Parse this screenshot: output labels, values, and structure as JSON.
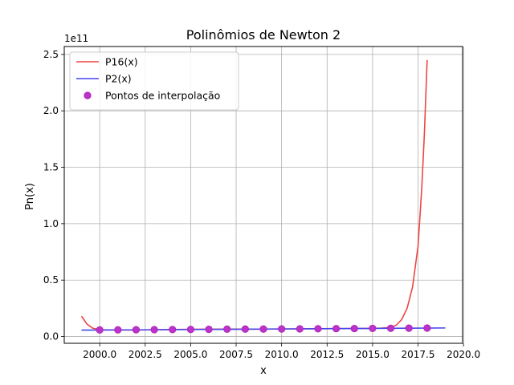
{
  "chart_data": {
    "type": "line",
    "title": "Polinômios de Newton 2",
    "xlabel": "x",
    "ylabel": "Pn(x)",
    "y_offset_label": "1e11",
    "xlim": [
      1998.05,
      2019.95
    ],
    "ylim": [
      -0.06,
      2.57
    ],
    "y_unit_scale": 100000000000.0,
    "x_ticks": [
      2000.0,
      2002.5,
      2005.0,
      2007.5,
      2010.0,
      2012.5,
      2015.0,
      2017.5,
      2020.0
    ],
    "x_tick_labels": [
      "2000.0",
      "2002.5",
      "2005.0",
      "2007.5",
      "2010.0",
      "2012.5",
      "2015.0",
      "2017.5",
      "2020.0"
    ],
    "y_ticks": [
      0.0,
      0.5,
      1.0,
      1.5,
      2.0,
      2.5
    ],
    "y_tick_labels": [
      "0.0",
      "0.5",
      "1.0",
      "1.5",
      "2.0",
      "2.5"
    ],
    "grid": true,
    "legend_position": "top-left",
    "series": [
      {
        "name": "P16(x)",
        "kind": "line",
        "color": "#ee4444",
        "x": [
          1999.0,
          1999.3,
          1999.6,
          2000.0,
          2001.0,
          2002.0,
          2003.0,
          2004.0,
          2005.0,
          2006.0,
          2007.0,
          2008.0,
          2009.0,
          2010.0,
          2011.0,
          2012.0,
          2013.0,
          2014.0,
          2015.0,
          2015.5,
          2016.0,
          2016.3,
          2016.6,
          2016.9,
          2017.2,
          2017.5,
          2017.7,
          2017.85,
          2018.0
        ],
        "y": [
          0.18,
          0.11,
          0.075,
          0.06,
          0.058,
          0.058,
          0.06,
          0.062,
          0.064,
          0.065,
          0.066,
          0.066,
          0.066,
          0.067,
          0.068,
          0.069,
          0.07,
          0.071,
          0.072,
          0.075,
          0.08,
          0.1,
          0.15,
          0.25,
          0.44,
          0.8,
          1.3,
          1.8,
          2.45
        ]
      },
      {
        "name": "P2(x)",
        "kind": "line",
        "color": "#4444ee",
        "x": [
          1999.0,
          2002.0,
          2005.0,
          2008.0,
          2011.0,
          2014.0,
          2017.0,
          2019.0
        ],
        "y": [
          0.057,
          0.059,
          0.062,
          0.065,
          0.068,
          0.071,
          0.074,
          0.076
        ]
      },
      {
        "name": "Pontos de interpolação",
        "kind": "scatter",
        "color": "#bb33cc",
        "edge_color": "#aa22aa",
        "x": [
          2000,
          2001,
          2002,
          2003,
          2004,
          2005,
          2006,
          2007,
          2008,
          2009,
          2010,
          2011,
          2012,
          2013,
          2014,
          2015,
          2016,
          2017,
          2018
        ],
        "y": [
          0.058,
          0.059,
          0.06,
          0.061,
          0.062,
          0.063,
          0.064,
          0.065,
          0.066,
          0.066,
          0.067,
          0.068,
          0.069,
          0.07,
          0.071,
          0.072,
          0.073,
          0.074,
          0.075
        ]
      }
    ]
  }
}
